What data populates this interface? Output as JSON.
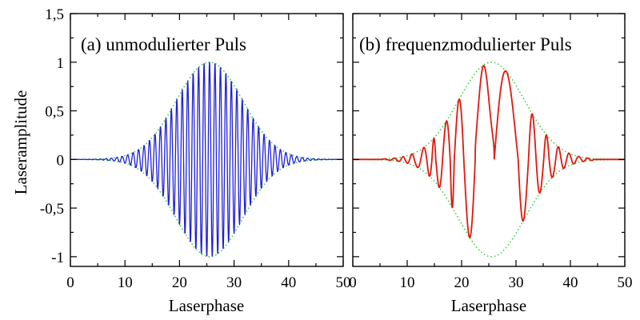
{
  "chart_data": [
    {
      "type": "line",
      "title": "(a) unmodulierter Puls",
      "xlabel": "Laserphase",
      "ylabel": "Laseramplitude",
      "xlim": [
        0,
        50
      ],
      "ylim": [
        -1.1,
        1.5
      ],
      "xticks": [
        "0",
        "10",
        "20",
        "30",
        "40",
        "50"
      ],
      "yticks": [
        "1,5",
        "1",
        "0,5",
        "0",
        "-0,5",
        "-1"
      ],
      "center": 25.5,
      "envelope_width": 8.6,
      "modulation": "none",
      "carrier_period": 1.0,
      "series": [
        {
          "name": "",
          "kind": "signal",
          "color": "#1f1fd9",
          "style": "solid"
        },
        {
          "name": "",
          "kind": "envelope",
          "color": "#33cc33",
          "style": "dotted"
        }
      ]
    },
    {
      "type": "line",
      "title": "(b) frequenzmodulierter Puls",
      "xlabel": "Laserphase",
      "ylabel": "",
      "xlim": [
        0,
        50
      ],
      "ylim": [
        -1.1,
        1.5
      ],
      "xticks": [
        "0",
        "10",
        "20",
        "30",
        "40",
        "50"
      ],
      "yticks": [],
      "center": 25.5,
      "envelope_width": 8.6,
      "modulation": "frequency",
      "carrier_period": 1.0,
      "series": [
        {
          "name": "",
          "kind": "signal",
          "color": "#e0190f",
          "style": "solid"
        },
        {
          "name": "",
          "kind": "envelope",
          "color": "#33cc33",
          "style": "dotted"
        }
      ]
    }
  ]
}
